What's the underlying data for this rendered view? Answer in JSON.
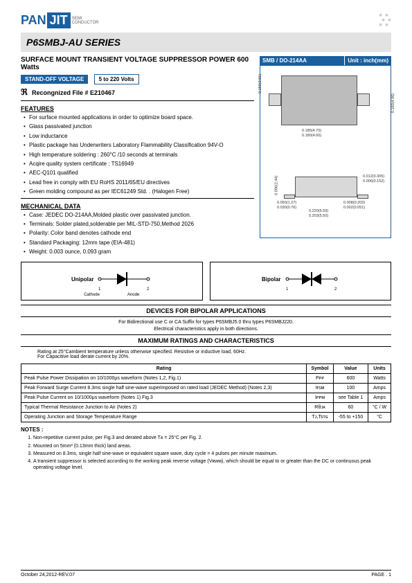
{
  "logo": {
    "pan": "PAN",
    "jit": "JIT",
    "sub1": "SEMI",
    "sub2": "CONDUCTOR"
  },
  "series": "P6SMBJ-AU SERIES",
  "subtitle": "SURFACE MOUNT TRANSIENT VOLTAGE SUPPRESSOR  POWER  600 Watts",
  "tag_standoff": "STAND-OFF VOLTAGE",
  "tag_vrange": "5 to 220 Volts",
  "recognized": "Recongnized File # E210467",
  "ul_mark": "▪",
  "pkg": {
    "left": "SMB / DO-214AA",
    "right": "Unit : inch(mm)"
  },
  "dims": {
    "d1": "0.096(2.44)",
    "d2": "0.160(4.06)",
    "d3": "0.150(3.81)",
    "d4": "0.185(4.70)",
    "d5": "0.180(4.60)",
    "d6": "0.050(1.27)",
    "d7": "0.030(0.76)",
    "d8": "0.220(5.59)",
    "d9": "0.203(5.50)",
    "d10": "0.012(0.305)",
    "d11": "0.006(0.152)",
    "d12": "0.008(0.203)",
    "d13": "0.002(0.051)"
  },
  "features_h": "FEATURES",
  "features": [
    "For surface mounted applications in order to optimize board space.",
    "Glass passivated junction",
    "Low inductance",
    "Plastic package has Underwriters Laboratory Flammability Classification 94V-O",
    "High temperature soldering : 260°C /10 seconds at terminals",
    "Acqire quality system certificate : TS16949",
    "AEC-Q101 qualified",
    "Lead free in comply with EU RoHS 2011/65/EU directives",
    "Green molding compound as per IEC61249 Std. . (Halogen Free)"
  ],
  "mech_h": "MECHANICAL DATA",
  "mech": [
    "Case: JEDEC DO-214AA,Molded plastic over passivated junction.",
    "Terminals: Solder plated,solderable per MIL-STD-750,Method 2026",
    "Polarity: Color band denotes cathode end",
    "Standard Packaging: 12mm tape (EIA-481)",
    "Weight: 0.003 ounce, 0.093 gram"
  ],
  "diode": {
    "uni": "Unipolar",
    "bi": "Bipolar",
    "cath": "Cathode",
    "anode": "Anode"
  },
  "bipolar_h": "DEVICES FOR BIPOLAR APPLICATIONS",
  "bipolar_note1": "For Bidirectional use C or CA Suffix for types P6SMBJ5.0 thru types P6SMBJ220.",
  "bipolar_note2": "Electrical characteristics apply in both directions.",
  "maxrat_h": "MAXIMUM RATINGS AND CHARACTERISTICS",
  "maxrat_intro1": "Rating at 25°Cambient temperature unless otherwise specified. Resistive or inductive load, 60Hz.",
  "maxrat_intro2": "For Capacitive load derate current by 20%.",
  "table": {
    "headers": [
      "Rating",
      "Symbol",
      "Value",
      "Units"
    ],
    "rows": [
      [
        "Peak Pulse Power Dissipation on 10/1000μs waveform (Notes 1,2, Fig.1)",
        "Pᴘᴘ",
        "600",
        "Watts"
      ],
      [
        "Peak Forward Surge Current 8.3ms single half sine-wave superimposed on rated load (JEDEC Method) (Notes 2,3)",
        "Iғsᴍ",
        "100",
        "Amps"
      ],
      [
        "Peak Pulse Current on 10/1000μs waveform (Notes 1) Fig.3",
        "Iᴘᴘᴍ",
        "see Table 1",
        "Amps"
      ],
      [
        "Typical Thermal Resistance Junction to Air (Notes 2)",
        "Rθᴊᴀ",
        "60",
        "°C / W"
      ],
      [
        "Operating Junction and Storage Temperature Range",
        "Tᴊ,Tsᴛɢ",
        "-55 to +150",
        "°C"
      ]
    ]
  },
  "notes_h": "NOTES :",
  "notes": [
    "Non-repetitive current pulse, per Fig.3 and derated above Tᴀ = 25°C per Fig. 2.",
    "Mounted on 5mm² (0.13mm thick) land areas.",
    "Measured on 8.3ms, single half sine-wave or equivalent square wave, duty cycle = 4 pulses per minute maximum.",
    "A transient suppressor is selected according to the working peak reverse voltage (Vʀᴡᴍ), which should be equal to or greater than the DC or continuous peak operating voltage level."
  ],
  "footer": {
    "left": "October 24,2012-REV.07",
    "right": "PAGE .  1"
  }
}
